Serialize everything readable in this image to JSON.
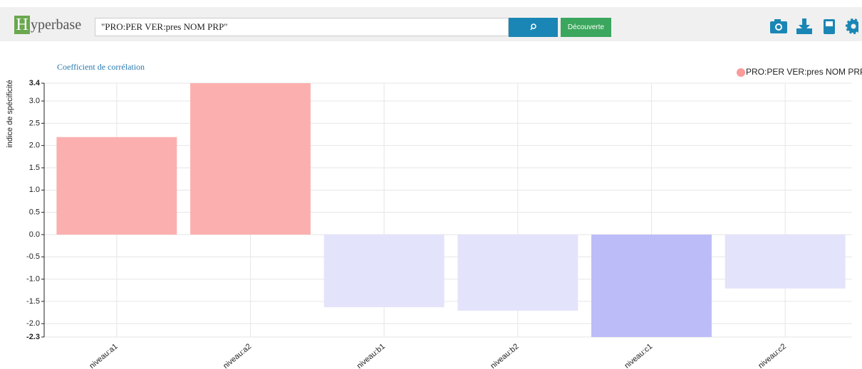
{
  "header": {
    "logo_letter": "H",
    "logo_rest": "yperbase",
    "search_query": "\"PRO:PER VER:pres NOM PRP\"",
    "discover_button": "Découverte"
  },
  "chart_data": {
    "type": "bar",
    "title": "Coefficient de corrélation",
    "y_label": "indice de spécificité",
    "categories": [
      "niveau:a1",
      "niveau:a2",
      "niveau:b1",
      "niveau:b2",
      "niveau:c1",
      "niveau:c2"
    ],
    "series": [
      {
        "name": "PRO:PER VER:pres NOM PRP",
        "color": "#fa9a9a",
        "values": [
          2.19,
          3.4,
          -1.63,
          -1.71,
          -2.3,
          -1.21
        ]
      }
    ],
    "bar_colors": [
      "#fcafaf",
      "#fcafaf",
      "#e3e3fb",
      "#e3e3fb",
      "#bcbcf8",
      "#e3e3fb"
    ],
    "ylim": [
      -2.3,
      3.4
    ],
    "yticks": [
      3.4,
      {
        "value": 3,
        "label": "3.0"
      },
      2.5,
      {
        "value": 2,
        "label": "2.0"
      },
      1.5,
      {
        "value": 1,
        "label": "1.0"
      },
      0.5,
      {
        "value": 0,
        "label": "0.0"
      },
      -0.5,
      {
        "value": -1,
        "label": "-1.0"
      },
      -1.5,
      {
        "value": -2,
        "label": "-2.0"
      },
      -2.3
    ],
    "grid": true,
    "legend": "top-right"
  }
}
